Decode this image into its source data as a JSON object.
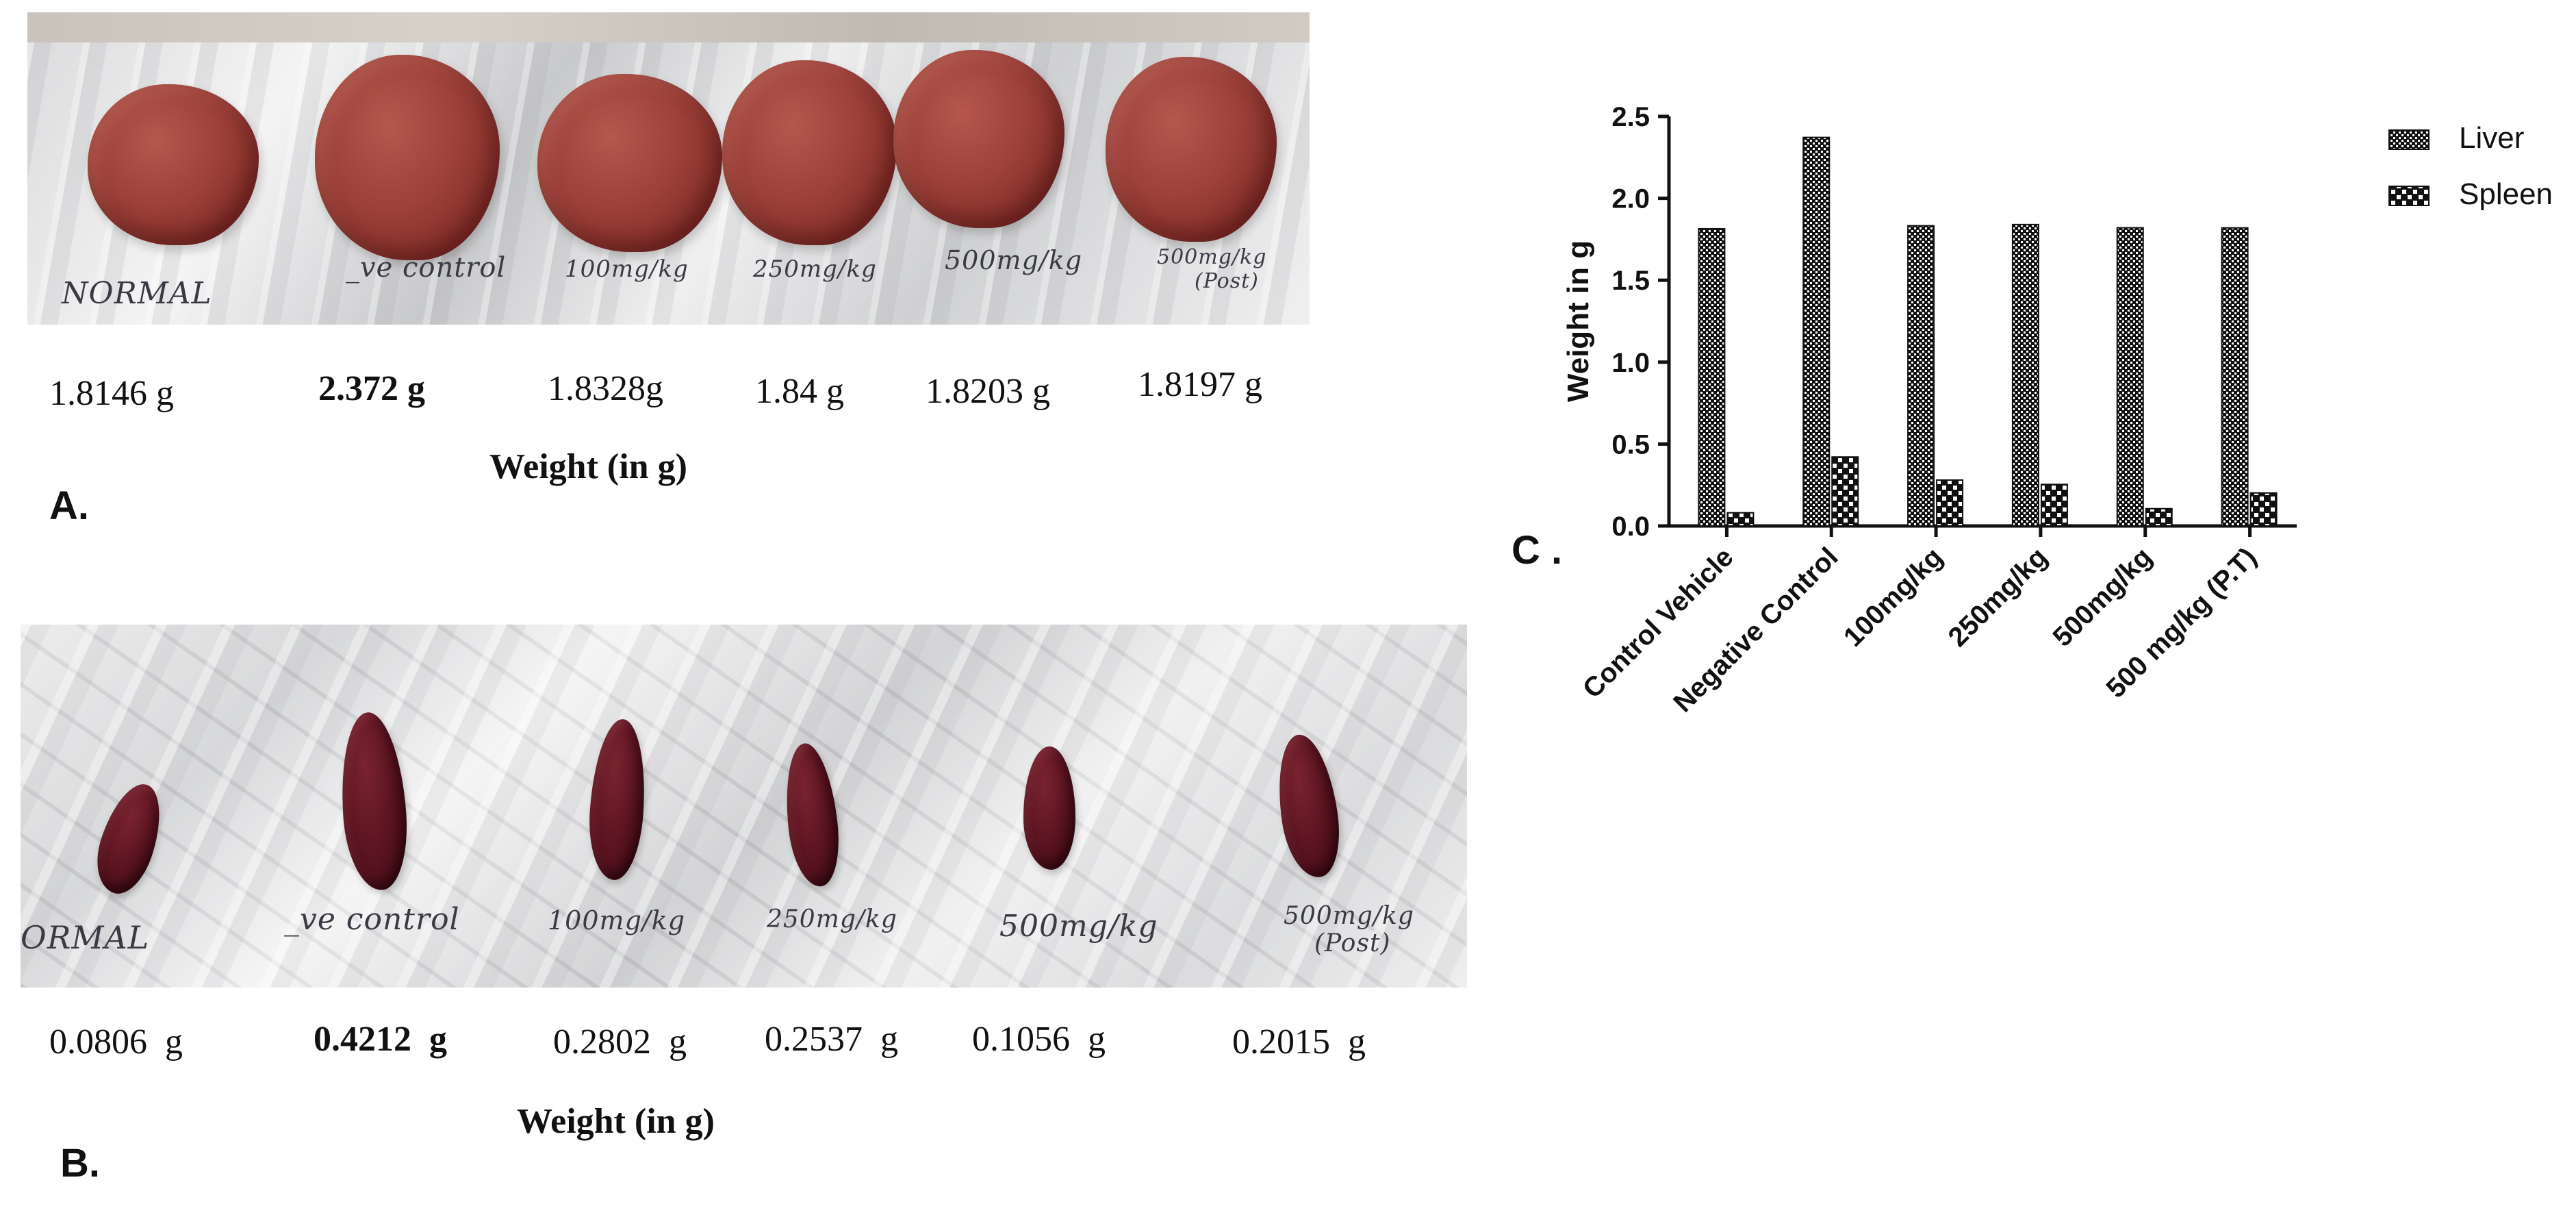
{
  "panel_a": {
    "letter": "A",
    "weights": [
      "1.8146 g",
      "2.372 g",
      "1.8328g",
      "1.84 g",
      "1.8203 g",
      "1.8197 g"
    ],
    "bold_index": 1,
    "caption": "Weight (in g)",
    "photo_labels": [
      "NORMAL",
      "_ve control",
      "100mg/kg",
      "250mg/kg",
      "500mg/kg",
      "500mg/kg",
      "(Post)"
    ]
  },
  "panel_b": {
    "letter": "B",
    "weights": [
      "0.0806  g",
      "0.4212  g",
      "0.2802  g",
      "0.2537  g",
      "0.1056  g",
      "0.2015  g"
    ],
    "bold_index": 1,
    "caption": "Weight (in g)",
    "photo_labels": [
      "ORMAL",
      "_ve control",
      "100mg/kg",
      "250mg/kg",
      "500mg/kg",
      "500mg/kg",
      "(Post)"
    ]
  },
  "panel_c": {
    "letter": "C"
  },
  "chart_data": {
    "type": "bar",
    "categories": [
      "Control Vehicle",
      "Negative Control",
      "100mg/kg",
      "250mg/kg",
      "500mg/kg",
      "500 mg/kg (P.T)"
    ],
    "series": [
      {
        "name": "Liver",
        "values": [
          1.8146,
          2.372,
          1.8328,
          1.84,
          1.8203,
          1.8197
        ]
      },
      {
        "name": "Spleen",
        "values": [
          0.0806,
          0.4212,
          0.2802,
          0.2537,
          0.1056,
          0.2015
        ]
      }
    ],
    "ylabel": "Weight in g",
    "xlabel": "",
    "ylim": [
      0,
      2.5
    ],
    "yticks": [
      "0.0",
      "0.5",
      "1.0",
      "1.5",
      "2.0",
      "2.5"
    ],
    "legend_position": "top-right",
    "grid": false
  }
}
